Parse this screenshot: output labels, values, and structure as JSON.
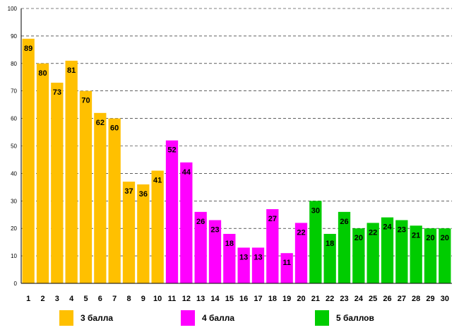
{
  "chart_data": {
    "type": "bar",
    "title": "",
    "xlabel": "",
    "ylabel": "",
    "ylim": [
      0,
      100
    ],
    "ytick_step": 10,
    "grid": "dashed horizontal",
    "categories": [
      "1",
      "2",
      "3",
      "4",
      "5",
      "6",
      "7",
      "8",
      "9",
      "10",
      "11",
      "12",
      "13",
      "14",
      "15",
      "16",
      "17",
      "18",
      "19",
      "20",
      "21",
      "22",
      "23",
      "24",
      "25",
      "26",
      "27",
      "28",
      "29",
      "30"
    ],
    "values": [
      89,
      80,
      73,
      81,
      70,
      62,
      60,
      37,
      36,
      41,
      52,
      44,
      26,
      23,
      18,
      13,
      13,
      27,
      11,
      22,
      30,
      18,
      26,
      20,
      22,
      24,
      23,
      21,
      20,
      20
    ],
    "groups": [
      {
        "name": "3 балла",
        "color": "#FFC000",
        "from": 1,
        "to": 10
      },
      {
        "name": "4 балла",
        "color": "#FF00FF",
        "from": 11,
        "to": 20
      },
      {
        "name": "5 баллов",
        "color": "#00CC00",
        "from": 21,
        "to": 30
      }
    ],
    "legend_position": "bottom"
  },
  "legend": {
    "items": [
      {
        "label": "3 балла",
        "color": "#FFC000"
      },
      {
        "label": "4 балла",
        "color": "#FF00FF"
      },
      {
        "label": "5 баллов",
        "color": "#00CC00"
      }
    ]
  }
}
